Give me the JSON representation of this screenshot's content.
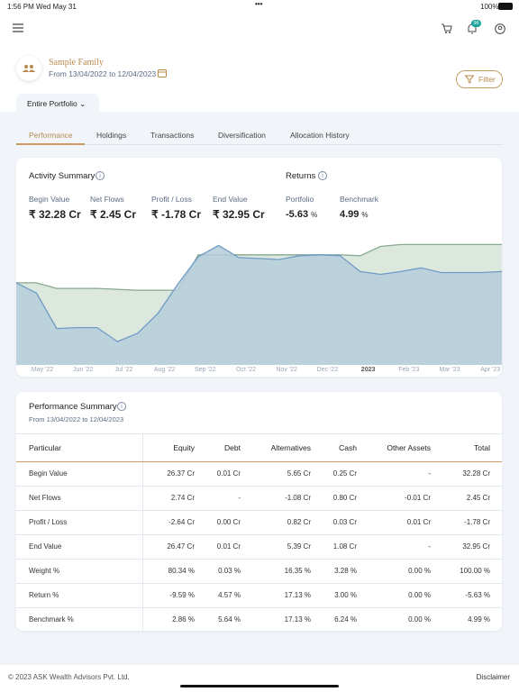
{
  "status": {
    "time": "1:56 PM",
    "date": "Wed May 31",
    "battery": "100%"
  },
  "header": {
    "badge": "96"
  },
  "family": {
    "name": "Sample Family",
    "period": "From 13/04/2022 to 12/04/2023"
  },
  "filter": "Filter",
  "selector": "Entire Portfolio",
  "tabs": [
    "Performance",
    "Holdings",
    "Transactions",
    "Diversification",
    "Allocation History"
  ],
  "activity": {
    "title": "Activity Summary",
    "items": [
      {
        "label": "Begin Value",
        "value": "₹ 32.28 Cr"
      },
      {
        "label": "Net Flows",
        "value": "₹ 2.45 Cr"
      },
      {
        "label": "Profit / Loss",
        "value": "₹ -1.78 Cr"
      },
      {
        "label": "End Value",
        "value": "₹ 32.95 Cr"
      }
    ]
  },
  "returns": {
    "title": "Returns",
    "items": [
      {
        "label": "Portfolio",
        "value": "-5.63",
        "unit": "%"
      },
      {
        "label": "Benchmark",
        "value": "4.99",
        "unit": "%"
      }
    ]
  },
  "chart_data": {
    "type": "area",
    "x_labels": [
      "May '22",
      "Jun '22",
      "Jul '22",
      "Aug '22",
      "Sep '22",
      "Oct '22",
      "Nov '22",
      "Dec '22",
      "2023",
      "Feb '23",
      "Mar '23",
      "Apr '23"
    ],
    "ylim": [
      0,
      140
    ],
    "series": [
      {
        "name": "Benchmark",
        "color": "#86a98f",
        "fill": "#d6e3d8",
        "values": [
          88,
          88,
          82,
          82,
          82,
          81,
          80,
          80,
          80,
          118,
          118,
          118,
          118,
          118,
          118,
          118,
          118,
          117,
          127,
          129,
          129,
          129,
          129,
          129,
          129
        ]
      },
      {
        "name": "Portfolio",
        "color": "#6f9cc6",
        "fill": "#b5cddb",
        "values": [
          88,
          77,
          39,
          40,
          40,
          25,
          34,
          55,
          87,
          116,
          128,
          115,
          114,
          113,
          117,
          118,
          117,
          100,
          97,
          100,
          104,
          99,
          99,
          99,
          100
        ]
      }
    ]
  },
  "summary": {
    "title": "Performance Summary",
    "period": "From 13/04/2022 to 12/04/2023",
    "columns": [
      "Particular",
      "Equity",
      "Debt",
      "Alternatives",
      "Cash",
      "Other Assets",
      "Total"
    ],
    "rows": [
      [
        "Begin Value",
        "26.37 Cr",
        "0.01 Cr",
        "5.65 Cr",
        "0.25 Cr",
        "-",
        "32.28 Cr"
      ],
      [
        "Net Flows",
        "2.74 Cr",
        "-",
        "-1.08 Cr",
        "0.80 Cr",
        "-0.01 Cr",
        "2.45 Cr"
      ],
      [
        "Profit / Loss",
        "-2.64 Cr",
        "0.00 Cr",
        "0.82 Cr",
        "0.03 Cr",
        "0.01 Cr",
        "-1.78 Cr"
      ],
      [
        "End Value",
        "26.47 Cr",
        "0.01 Cr",
        "5.39 Cr",
        "1.08 Cr",
        "-",
        "32.95 Cr"
      ],
      [
        "Weight %",
        "80.34 %",
        "0.03 %",
        "16.35 %",
        "3.28 %",
        "0.00 %",
        "100.00 %"
      ],
      [
        "Return %",
        "-9.59 %",
        "4.57 %",
        "17.13 %",
        "3.00 %",
        "0.00 %",
        "-5.63 %"
      ],
      [
        "Benchmark %",
        "2.86 %",
        "5.64 %",
        "17.13 %",
        "6.24 %",
        "0.00 %",
        "4.99 %"
      ]
    ]
  },
  "footer": {
    "copyright": "© 2023 ASK Wealth Advisors Pvt. Ltd.",
    "disclaimer": "Disclaimer"
  }
}
